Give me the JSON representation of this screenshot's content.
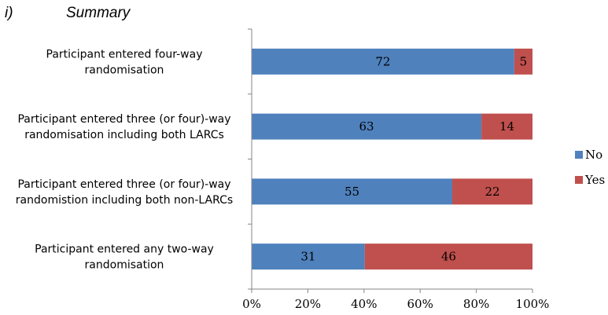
{
  "caption": {
    "id": "i)",
    "title": "Summary"
  },
  "chart_data": {
    "type": "bar",
    "orientation": "horizontal",
    "stacked": "percent",
    "categories": [
      [
        "Participant entered four-way",
        "randomisation"
      ],
      [
        "Participant entered three (or four)-way",
        "randomisation including both LARCs"
      ],
      [
        "Participant entered three (or four)-way",
        "randomistion including both non-LARCs"
      ],
      [
        "Participant entered any two-way",
        "randomisation"
      ]
    ],
    "series": [
      {
        "name": "No",
        "color": "#4f81bd",
        "values": [
          72,
          63,
          55,
          31
        ]
      },
      {
        "name": "Yes",
        "color": "#c0504d",
        "values": [
          5,
          14,
          22,
          46
        ]
      }
    ],
    "xlim": [
      0,
      100
    ],
    "xticks": [
      "0%",
      "20%",
      "40%",
      "60%",
      "80%",
      "100%"
    ],
    "grid": false,
    "legend": "right"
  }
}
